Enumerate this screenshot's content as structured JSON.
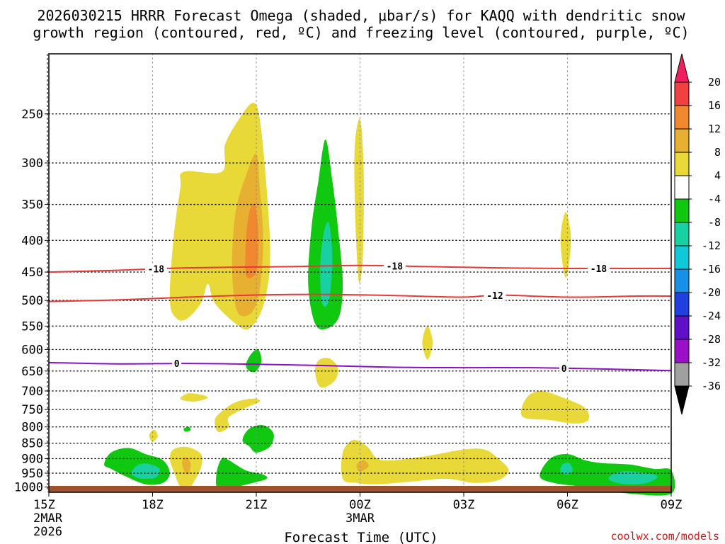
{
  "chart_data": {
    "type": "heatmap",
    "title_line1": "2026030215 HRRR Forecast Omega (shaded, μbar/s) for KAQQ with dendritic snow",
    "title_line2": "growth region (contoured, red, ºC) and freezing level (contoured, purple, ºC)",
    "xlabel": "Forecast Time (UTC)",
    "credit": "coolwx.com/models",
    "x_range_hours": [
      0,
      18
    ],
    "x_ticks": [
      {
        "h": 0,
        "label": "15Z",
        "sub1": "2MAR",
        "sub2": "2026"
      },
      {
        "h": 3,
        "label": "18Z",
        "sub1": "",
        "sub2": ""
      },
      {
        "h": 6,
        "label": "21Z",
        "sub1": "",
        "sub2": ""
      },
      {
        "h": 9,
        "label": "00Z",
        "sub1": "3MAR",
        "sub2": ""
      },
      {
        "h": 12,
        "label": "03Z",
        "sub1": "",
        "sub2": ""
      },
      {
        "h": 15,
        "label": "06Z",
        "sub1": "",
        "sub2": ""
      },
      {
        "h": 18,
        "label": "09Z",
        "sub1": "",
        "sub2": ""
      }
    ],
    "y_axis": "pressure (hPa), log scale, inverted",
    "y_range_hpa": [
      1020,
      200
    ],
    "y_ticks": [
      250,
      300,
      350,
      400,
      450,
      500,
      550,
      600,
      650,
      700,
      750,
      800,
      850,
      900,
      950,
      1000
    ],
    "colorbar": {
      "levels": [
        20,
        16,
        12,
        8,
        4,
        -4,
        -8,
        -12,
        -16,
        -20,
        -24,
        -28,
        -32,
        -36
      ],
      "colors": [
        "#f02060",
        "#f04040",
        "#f08830",
        "#e8b030",
        "#e8d838",
        "#ffffff",
        "#10c810",
        "#18d0a0",
        "#10c8d8",
        "#1890e8",
        "#2040e0",
        "#6010c8",
        "#9a10c8",
        "#a0a0a0",
        "#000000"
      ]
    },
    "contours": [
      {
        "name": "dgz-minus18",
        "value": -18,
        "color": "#e83838",
        "label": "-18",
        "points": [
          [
            0,
            450
          ],
          [
            2,
            447
          ],
          [
            4,
            443
          ],
          [
            7,
            441
          ],
          [
            9,
            439
          ],
          [
            11,
            441
          ],
          [
            13,
            443
          ],
          [
            15,
            444
          ],
          [
            18,
            444
          ]
        ],
        "label_hours": [
          3.1,
          10.0,
          15.9
        ]
      },
      {
        "name": "dgz-minus12",
        "value": -12,
        "color": "#e83838",
        "label": "-12",
        "points": [
          [
            0,
            502
          ],
          [
            2,
            499
          ],
          [
            4,
            494
          ],
          [
            6,
            490
          ],
          [
            8,
            489
          ],
          [
            10,
            491
          ],
          [
            12,
            494
          ],
          [
            13,
            490
          ],
          [
            15,
            494
          ],
          [
            17,
            492
          ],
          [
            18,
            492
          ]
        ],
        "label_hours": [
          12.9
        ]
      },
      {
        "name": "freezing-level",
        "value": 0,
        "color": "#8a10c8",
        "label": "0",
        "points": [
          [
            0,
            630
          ],
          [
            2,
            633
          ],
          [
            4,
            632
          ],
          [
            6,
            634
          ],
          [
            8,
            637
          ],
          [
            10,
            641
          ],
          [
            12,
            642
          ],
          [
            14,
            642
          ],
          [
            16,
            645
          ],
          [
            18,
            649
          ]
        ],
        "label_hours": [
          3.7,
          14.9
        ]
      }
    ],
    "regions": [
      {
        "name": "yellow-block-1900-2100",
        "value": 6,
        "color": "#e8d838",
        "points": [
          [
            3.7,
            535
          ],
          [
            3.5,
            500
          ],
          [
            3.6,
            400
          ],
          [
            3.8,
            330
          ],
          [
            3.9,
            310
          ],
          [
            5.0,
            310
          ],
          [
            5.1,
            280
          ],
          [
            5.5,
            255
          ],
          [
            5.9,
            240
          ],
          [
            6.1,
            255
          ],
          [
            6.3,
            330
          ],
          [
            6.4,
            430
          ],
          [
            6.2,
            510
          ],
          [
            5.8,
            555
          ],
          [
            5.4,
            545
          ],
          [
            4.8,
            505
          ],
          [
            4.6,
            470
          ],
          [
            4.4,
            505
          ],
          [
            4.0,
            535
          ]
        ]
      },
      {
        "name": "orange-lobe-2100",
        "value": 10,
        "color": "#e8b030",
        "points": [
          [
            5.4,
            510
          ],
          [
            5.3,
            440
          ],
          [
            5.4,
            360
          ],
          [
            5.7,
            315
          ],
          [
            6.0,
            290
          ],
          [
            6.1,
            330
          ],
          [
            6.2,
            400
          ],
          [
            6.1,
            480
          ],
          [
            5.9,
            520
          ],
          [
            5.6,
            530
          ]
        ]
      },
      {
        "name": "dark-orange-core-2100",
        "value": 13,
        "color": "#f08830",
        "points": [
          [
            5.7,
            455
          ],
          [
            5.7,
            400
          ],
          [
            5.8,
            360
          ],
          [
            5.95,
            350
          ],
          [
            6.05,
            380
          ],
          [
            6.05,
            430
          ],
          [
            5.95,
            455
          ]
        ]
      },
      {
        "name": "green-column-2200",
        "value": -6,
        "color": "#10c810",
        "points": [
          [
            7.7,
            545
          ],
          [
            7.5,
            470
          ],
          [
            7.6,
            380
          ],
          [
            7.8,
            320
          ],
          [
            8.0,
            275
          ],
          [
            8.2,
            320
          ],
          [
            8.4,
            400
          ],
          [
            8.5,
            470
          ],
          [
            8.4,
            530
          ],
          [
            8.05,
            555
          ]
        ]
      },
      {
        "name": "teal-core-2200",
        "value": -10,
        "color": "#18d0a0",
        "points": [
          [
            7.9,
            505
          ],
          [
            7.85,
            440
          ],
          [
            7.95,
            390
          ],
          [
            8.1,
            375
          ],
          [
            8.2,
            430
          ],
          [
            8.1,
            500
          ]
        ]
      },
      {
        "name": "yellow-spike-2300",
        "value": 5,
        "color": "#e8d838",
        "points": [
          [
            8.95,
            460
          ],
          [
            8.85,
            350
          ],
          [
            8.85,
            280
          ],
          [
            9.0,
            255
          ],
          [
            9.1,
            300
          ],
          [
            9.1,
            390
          ],
          [
            9.05,
            450
          ]
        ]
      },
      {
        "name": "yellow-spike-0100",
        "value": 5,
        "color": "#e8d838",
        "points": [
          [
            10.95,
            623
          ],
          [
            10.8,
            585
          ],
          [
            10.95,
            550
          ],
          [
            11.1,
            585
          ]
        ]
      },
      {
        "name": "yellow-spike-0500",
        "value": 5,
        "color": "#e8d838",
        "points": [
          [
            14.95,
            460
          ],
          [
            14.8,
            400
          ],
          [
            14.95,
            360
          ],
          [
            15.1,
            400
          ]
        ]
      },
      {
        "name": "green-blob-2100-mid",
        "value": -6,
        "color": "#10c810",
        "points": [
          [
            5.7,
            635
          ],
          [
            5.85,
            610
          ],
          [
            6.05,
            600
          ],
          [
            6.15,
            625
          ],
          [
            6.0,
            650
          ],
          [
            5.8,
            650
          ]
        ]
      },
      {
        "name": "yellow-blob-2200-mid",
        "value": 5,
        "color": "#e8d838",
        "points": [
          [
            7.8,
            685
          ],
          [
            7.7,
            650
          ],
          [
            7.8,
            625
          ],
          [
            8.1,
            620
          ],
          [
            8.35,
            640
          ],
          [
            8.3,
            670
          ],
          [
            8.0,
            690
          ]
        ]
      },
      {
        "name": "yellow-blob-1900-700",
        "value": 5,
        "color": "#e8d838",
        "points": [
          [
            3.8,
            720
          ],
          [
            4.0,
            707
          ],
          [
            4.3,
            708
          ],
          [
            4.6,
            717
          ],
          [
            4.3,
            727
          ],
          [
            4.0,
            727
          ]
        ]
      },
      {
        "name": "yellow-blob-2100-750",
        "value": 5,
        "color": "#e8d838",
        "points": [
          [
            4.9,
            815
          ],
          [
            4.8,
            780
          ],
          [
            5.0,
            755
          ],
          [
            5.4,
            730
          ],
          [
            5.9,
            720
          ],
          [
            6.1,
            728
          ],
          [
            5.7,
            745
          ],
          [
            5.2,
            772
          ],
          [
            5.2,
            800
          ]
        ]
      },
      {
        "name": "yellow-blob-1800-820",
        "value": 5,
        "color": "#e8d838",
        "points": [
          [
            3.0,
            845
          ],
          [
            2.9,
            825
          ],
          [
            3.05,
            808
          ],
          [
            3.15,
            828
          ]
        ]
      },
      {
        "name": "green-dot-1900-800",
        "value": -6,
        "color": "#10c810",
        "points": [
          [
            3.9,
            805
          ],
          [
            4.05,
            800
          ],
          [
            4.1,
            810
          ],
          [
            3.95,
            814
          ]
        ]
      },
      {
        "name": "green-blob-2100-830",
        "value": -6,
        "color": "#10c810",
        "points": [
          [
            5.8,
            860
          ],
          [
            5.6,
            840
          ],
          [
            5.8,
            805
          ],
          [
            6.2,
            795
          ],
          [
            6.5,
            820
          ],
          [
            6.4,
            860
          ],
          [
            6.0,
            880
          ]
        ]
      },
      {
        "name": "yellow-blob-1900-900",
        "value": 5,
        "color": "#e8d838",
        "points": [
          [
            3.8,
            1000
          ],
          [
            3.6,
            940
          ],
          [
            3.5,
            900
          ],
          [
            3.6,
            870
          ],
          [
            4.0,
            862
          ],
          [
            4.4,
            885
          ],
          [
            4.4,
            930
          ],
          [
            4.2,
            980
          ],
          [
            4.0,
            1010
          ]
        ]
      },
      {
        "name": "orange-dot-1900-920",
        "value": 9,
        "color": "#e8b030",
        "points": [
          [
            3.95,
            950
          ],
          [
            3.85,
            915
          ],
          [
            3.95,
            895
          ],
          [
            4.1,
            915
          ],
          [
            4.05,
            950
          ]
        ]
      },
      {
        "name": "green-blob-1700-920",
        "value": -6,
        "color": "#10c810",
        "points": [
          [
            1.6,
            920
          ],
          [
            1.8,
            880
          ],
          [
            2.3,
            865
          ],
          [
            2.8,
            885
          ],
          [
            3.3,
            905
          ],
          [
            3.5,
            950
          ],
          [
            3.3,
            985
          ],
          [
            2.8,
            990
          ],
          [
            2.2,
            960
          ],
          [
            1.8,
            935
          ]
        ]
      },
      {
        "name": "teal-core-1800-950",
        "value": -10,
        "color": "#18d0a0",
        "points": [
          [
            2.4,
            945
          ],
          [
            2.6,
            920
          ],
          [
            2.9,
            918
          ],
          [
            3.2,
            935
          ],
          [
            3.1,
            965
          ],
          [
            2.7,
            970
          ],
          [
            2.45,
            960
          ]
        ]
      },
      {
        "name": "green-blob-2030-950",
        "value": -6,
        "color": "#10c810",
        "points": [
          [
            4.9,
            1010
          ],
          [
            4.85,
            950
          ],
          [
            5.0,
            900
          ],
          [
            5.2,
            905
          ],
          [
            5.7,
            940
          ],
          [
            6.2,
            955
          ],
          [
            6.3,
            970
          ],
          [
            5.9,
            985
          ],
          [
            5.4,
            1000
          ]
        ]
      },
      {
        "name": "yellow-band-2300-0300",
        "value": 5,
        "color": "#e8d838",
        "points": [
          [
            8.5,
            970
          ],
          [
            8.5,
            880
          ],
          [
            8.8,
            840
          ],
          [
            9.2,
            860
          ],
          [
            9.5,
            900
          ],
          [
            10.0,
            905
          ],
          [
            11.0,
            890
          ],
          [
            12.0,
            870
          ],
          [
            12.6,
            870
          ],
          [
            13.0,
            900
          ],
          [
            13.3,
            940
          ],
          [
            13.0,
            975
          ],
          [
            12.3,
            985
          ],
          [
            11.5,
            970
          ],
          [
            10.5,
            980
          ],
          [
            9.5,
            990
          ],
          [
            8.9,
            985
          ]
        ]
      },
      {
        "name": "orange-dot-2330-920",
        "value": 9,
        "color": "#e8b030",
        "points": [
          [
            9.0,
            945
          ],
          [
            8.9,
            922
          ],
          [
            9.1,
            905
          ],
          [
            9.25,
            925
          ]
        ]
      },
      {
        "name": "yellow-blob-0430-740",
        "value": 5,
        "color": "#e8d838",
        "points": [
          [
            13.7,
            770
          ],
          [
            13.8,
            720
          ],
          [
            14.2,
            700
          ],
          [
            14.8,
            715
          ],
          [
            15.5,
            745
          ],
          [
            15.6,
            780
          ],
          [
            15.2,
            790
          ],
          [
            14.5,
            780
          ]
        ]
      },
      {
        "name": "green-band-0500-0900",
        "value": -6,
        "color": "#10c810",
        "points": [
          [
            14.2,
            960
          ],
          [
            14.5,
            900
          ],
          [
            15.0,
            885
          ],
          [
            15.5,
            905
          ],
          [
            16.0,
            915
          ],
          [
            16.8,
            920
          ],
          [
            17.5,
            935
          ],
          [
            18.0,
            940
          ],
          [
            18.0,
            1025
          ],
          [
            16.8,
            1025
          ],
          [
            15.5,
            1000
          ],
          [
            14.6,
            985
          ]
        ]
      },
      {
        "name": "teal-core-0500-920",
        "value": -10,
        "color": "#18d0a0",
        "points": [
          [
            14.8,
            945
          ],
          [
            14.85,
            920
          ],
          [
            15.05,
            915
          ],
          [
            15.15,
            940
          ],
          [
            15.0,
            955
          ]
        ]
      },
      {
        "name": "teal-core-0700-960",
        "value": -10,
        "color": "#18d0a0",
        "points": [
          [
            16.2,
            965
          ],
          [
            16.5,
            945
          ],
          [
            17.0,
            945
          ],
          [
            17.6,
            960
          ],
          [
            17.3,
            985
          ],
          [
            16.7,
            990
          ],
          [
            16.3,
            980
          ]
        ]
      }
    ]
  }
}
